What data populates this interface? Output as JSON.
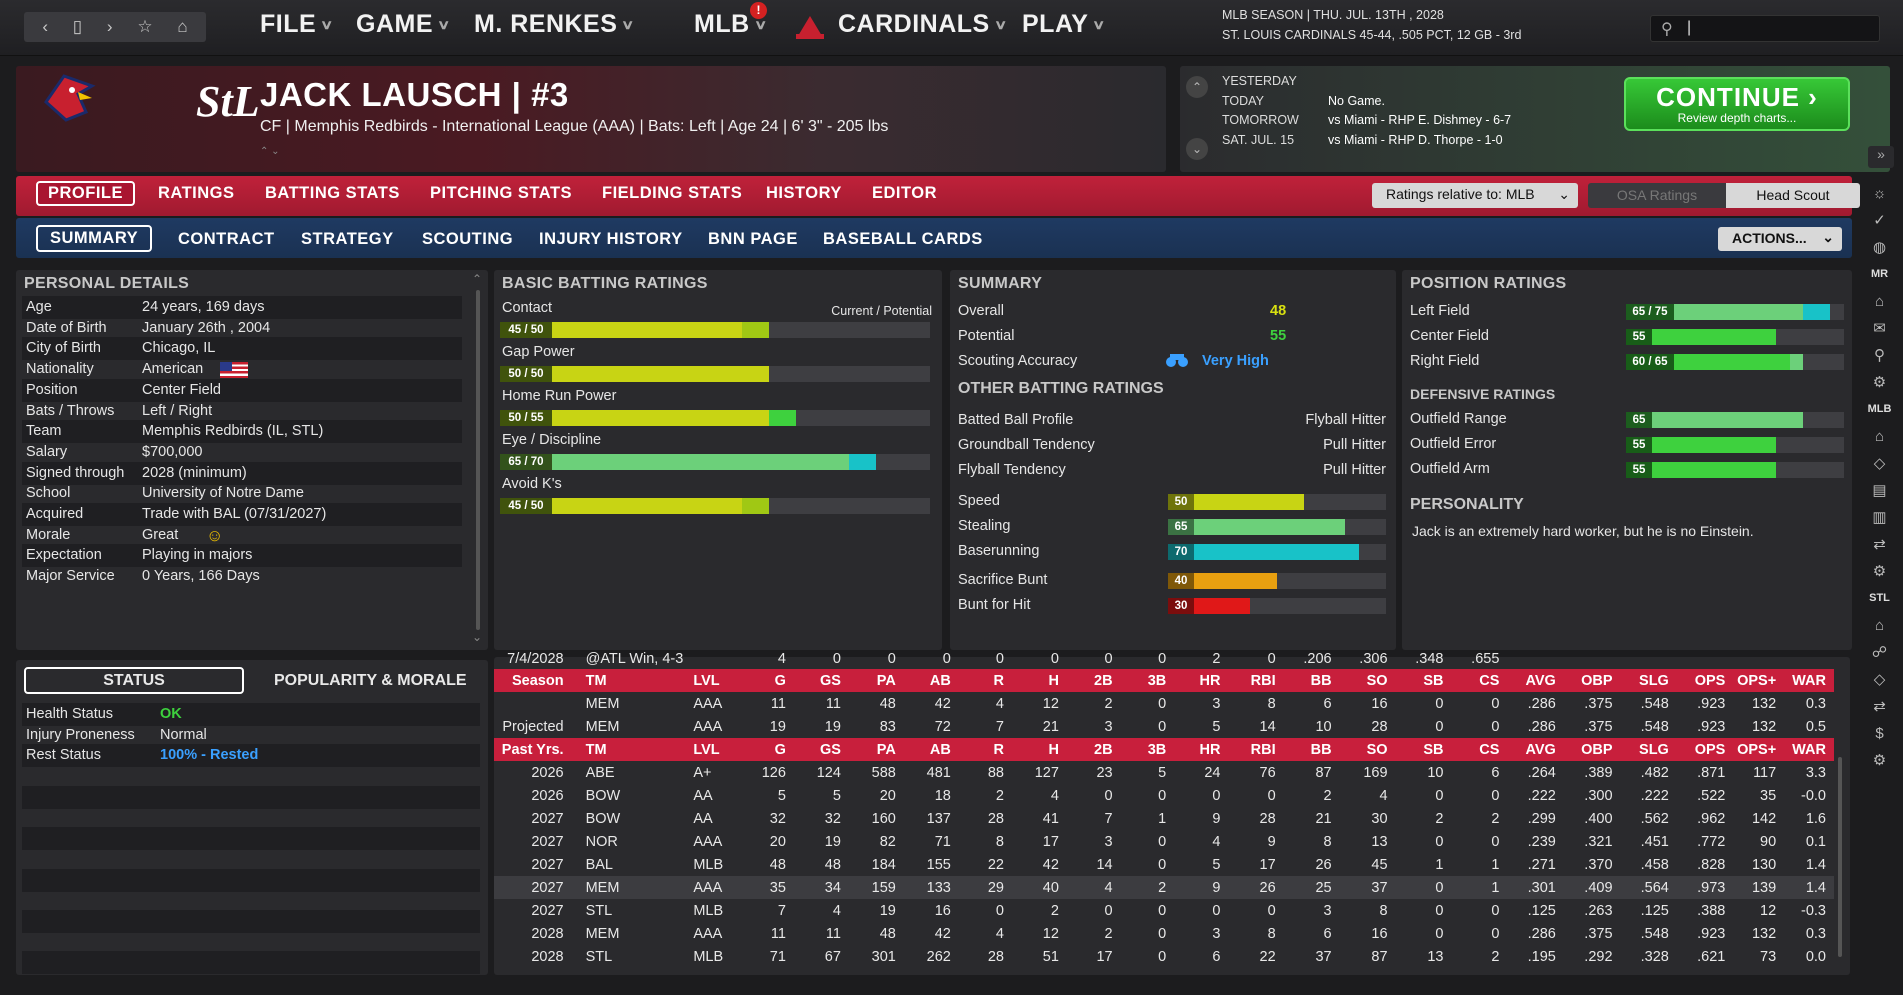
{
  "nav": {
    "back": "‹",
    "fwd": "›",
    "bookmark": "☆",
    "home": "⌂",
    "window": "▯"
  },
  "menu": [
    {
      "label": "FILE"
    },
    {
      "label": "GAME"
    },
    {
      "label": "M. RENKES"
    },
    {
      "label": "MLB"
    },
    {
      "label": "CARDINALS"
    },
    {
      "label": "PLAY"
    }
  ],
  "mlb_badge": "!",
  "season": {
    "line1": "MLB SEASON  |  THU. JUL. 13TH , 2028",
    "line2": "ST. LOUIS CARDINALS  45-44, .505 PCT, 12 GB - 3rd"
  },
  "search": {
    "placeholder": ""
  },
  "player": {
    "name": "JACK LAUSCH  |  #3",
    "info": "CF | Memphis Redbirds - International League (AAA)  |  Bats: Left  |  Age 24  |  6' 3\" - 205 lbs"
  },
  "schedule": {
    "labels": [
      "YESTERDAY",
      "TODAY",
      "TOMORROW",
      "SAT. JUL. 15"
    ],
    "values": [
      "",
      "No Game.",
      "vs Miami - RHP E. Dishmey - 6-7",
      "vs Miami - RHP D. Thorpe - 1-0"
    ]
  },
  "continue": {
    "title": "CONTINUE",
    "subtitle": "Review depth charts..."
  },
  "tabs1": [
    "PROFILE",
    "RATINGS",
    "BATTING STATS",
    "PITCHING STATS",
    "FIELDING STATS",
    "HISTORY",
    "EDITOR"
  ],
  "ratings_relative": "Ratings relative to: MLB",
  "osa": "OSA Ratings",
  "head_scout": "Head Scout",
  "tabs2": [
    "SUMMARY",
    "CONTRACT",
    "STRATEGY",
    "SCOUTING",
    "INJURY HISTORY",
    "BNN PAGE",
    "BASEBALL CARDS"
  ],
  "actions": "ACTIONS...",
  "personal": {
    "title": "PERSONAL DETAILS",
    "rows": [
      {
        "k": "Age",
        "v": "24 years, 169 days"
      },
      {
        "k": "Date of Birth",
        "v": "January 26th , 2004"
      },
      {
        "k": "City of Birth",
        "v": "Chicago, IL"
      },
      {
        "k": "Nationality",
        "v": "American"
      },
      {
        "k": "Position",
        "v": "Center Field"
      },
      {
        "k": "Bats / Throws",
        "v": "Left / Right"
      },
      {
        "k": "Team",
        "v": "Memphis Redbirds (IL, STL)"
      },
      {
        "k": "Salary",
        "v": "$700,000"
      },
      {
        "k": "Signed through",
        "v": "2028 (minimum)"
      },
      {
        "k": "School",
        "v": "University of Notre Dame"
      },
      {
        "k": "Acquired",
        "v": "Trade with BAL (07/31/2027)"
      },
      {
        "k": "Morale",
        "v": "Great"
      },
      {
        "k": "Expectation",
        "v": "Playing in majors"
      },
      {
        "k": "Major Service",
        "v": "0 Years, 166 Days"
      }
    ]
  },
  "status": {
    "tab1": "STATUS",
    "tab2": "POPULARITY & MORALE",
    "rows": [
      {
        "k": "Health Status",
        "v": "OK",
        "color": "#3dd13d"
      },
      {
        "k": "Injury Proneness",
        "v": "Normal",
        "color": "#e6e6e6"
      },
      {
        "k": "Rest Status",
        "v": "100% - Rested",
        "color": "#3aa0ff"
      }
    ]
  },
  "batting": {
    "title": "BASIC BATTING RATINGS",
    "legend": "Current / Potential",
    "items": [
      {
        "name": "Contact",
        "cur": 45,
        "pot": 50,
        "label": "45 / 50",
        "color": "#c8d414",
        "potcolor": "#a0c814"
      },
      {
        "name": "Gap Power",
        "cur": 50,
        "pot": 50,
        "label": "50 / 50",
        "color": "#c8d414",
        "potcolor": "#c8d414"
      },
      {
        "name": "Home Run Power",
        "cur": 50,
        "pot": 55,
        "label": "50 / 55",
        "color": "#c8d414",
        "potcolor": "#3ed13e"
      },
      {
        "name": "Eye / Discipline",
        "cur": 65,
        "pot": 70,
        "label": "65 / 70",
        "color": "#6cd07a",
        "potcolor": "#18c2c8"
      },
      {
        "name": "Avoid K's",
        "cur": 45,
        "pot": 50,
        "label": "45 / 50",
        "color": "#c8d414",
        "potcolor": "#a0c814"
      }
    ]
  },
  "summary": {
    "title": "SUMMARY",
    "overall_k": "Overall",
    "overall": "48",
    "potential_k": "Potential",
    "potential": "55",
    "scout_k": "Scouting Accuracy",
    "scout": "Very High",
    "other_title": "OTHER BATTING RATINGS",
    "other": [
      {
        "k": "Batted Ball Profile",
        "v": "Flyball Hitter"
      },
      {
        "k": "Groundball Tendency",
        "v": "Pull Hitter"
      },
      {
        "k": "Flyball Tendency",
        "v": "Pull Hitter"
      }
    ],
    "speed": [
      {
        "k": "Speed",
        "v": 50,
        "color": "#c8d414"
      },
      {
        "k": "Stealing",
        "v": 65,
        "color": "#6cd07a"
      },
      {
        "k": "Baserunning",
        "v": 70,
        "color": "#18c2c8"
      },
      {
        "k": "Sacrifice Bunt",
        "v": 40,
        "color": "#e8a010"
      },
      {
        "k": "Bunt for Hit",
        "v": 30,
        "color": "#e01818"
      }
    ]
  },
  "position": {
    "title": "POSITION RATINGS",
    "items": [
      {
        "k": "Left Field",
        "label": "65 / 75",
        "cur": 65,
        "pot": 75,
        "color": "#6cd07a",
        "potcolor": "#18c2c8"
      },
      {
        "k": "Center Field",
        "label": "55",
        "cur": 55,
        "pot": 55,
        "color": "#3ed13e",
        "potcolor": "#3ed13e"
      },
      {
        "k": "Right Field",
        "label": "60 / 65",
        "cur": 60,
        "pot": 65,
        "color": "#3ed13e",
        "potcolor": "#6cd07a"
      }
    ],
    "def_title": "DEFENSIVE RATINGS",
    "def": [
      {
        "k": "Outfield Range",
        "v": 65,
        "color": "#6cd07a"
      },
      {
        "k": "Outfield Error",
        "v": 55,
        "color": "#3ed13e"
      },
      {
        "k": "Outfield Arm",
        "v": 55,
        "color": "#3ed13e"
      }
    ],
    "pers_title": "PERSONALITY",
    "pers": "Jack is an extremely hard worker, but he is no Einstein."
  },
  "stats": {
    "partial": [
      "7/4/2028",
      "@ATL  Win, 4-3",
      "",
      "4",
      "0",
      "0",
      "0",
      "0",
      "0",
      "0",
      "0",
      "2",
      "0",
      ".206",
      ".306",
      ".348",
      ".655",
      ""
    ],
    "header1": [
      "Season",
      "TM",
      "LVL",
      "G",
      "GS",
      "PA",
      "AB",
      "R",
      "H",
      "2B",
      "3B",
      "HR",
      "RBI",
      "BB",
      "SO",
      "SB",
      "CS",
      "AVG",
      "OBP",
      "SLG",
      "OPS",
      "OPS+",
      "WAR"
    ],
    "cur": [
      [
        "",
        "MEM",
        "AAA",
        "11",
        "11",
        "48",
        "42",
        "4",
        "12",
        "2",
        "0",
        "3",
        "8",
        "6",
        "16",
        "0",
        "0",
        ".286",
        ".375",
        ".548",
        ".923",
        "132",
        "0.3"
      ],
      [
        "Projected",
        "MEM",
        "AAA",
        "19",
        "19",
        "83",
        "72",
        "7",
        "21",
        "3",
        "0",
        "5",
        "14",
        "10",
        "28",
        "0",
        "0",
        ".286",
        ".375",
        ".548",
        ".923",
        "132",
        "0.5"
      ]
    ],
    "header2": [
      "Past Yrs.",
      "TM",
      "LVL",
      "G",
      "GS",
      "PA",
      "AB",
      "R",
      "H",
      "2B",
      "3B",
      "HR",
      "RBI",
      "BB",
      "SO",
      "SB",
      "CS",
      "AVG",
      "OBP",
      "SLG",
      "OPS",
      "OPS+",
      "WAR"
    ],
    "past": [
      [
        "2026",
        "ABE",
        "A+",
        "126",
        "124",
        "588",
        "481",
        "88",
        "127",
        "23",
        "5",
        "24",
        "76",
        "87",
        "169",
        "10",
        "6",
        ".264",
        ".389",
        ".482",
        ".871",
        "117",
        "3.3"
      ],
      [
        "2026",
        "BOW",
        "AA",
        "5",
        "5",
        "20",
        "18",
        "2",
        "4",
        "0",
        "0",
        "0",
        "0",
        "2",
        "4",
        "0",
        "0",
        ".222",
        ".300",
        ".222",
        ".522",
        "35",
        "-0.0"
      ],
      [
        "2027",
        "BOW",
        "AA",
        "32",
        "32",
        "160",
        "137",
        "28",
        "41",
        "7",
        "1",
        "9",
        "28",
        "21",
        "30",
        "2",
        "2",
        ".299",
        ".400",
        ".562",
        ".962",
        "142",
        "1.6"
      ],
      [
        "2027",
        "NOR",
        "AAA",
        "20",
        "19",
        "82",
        "71",
        "8",
        "17",
        "3",
        "0",
        "4",
        "9",
        "8",
        "13",
        "0",
        "0",
        ".239",
        ".321",
        ".451",
        ".772",
        "90",
        "0.1"
      ],
      [
        "2027",
        "BAL",
        "MLB",
        "48",
        "48",
        "184",
        "155",
        "22",
        "42",
        "14",
        "0",
        "5",
        "17",
        "26",
        "45",
        "1",
        "1",
        ".271",
        ".370",
        ".458",
        ".828",
        "130",
        "1.4"
      ],
      [
        "2027",
        "MEM",
        "AAA",
        "35",
        "34",
        "159",
        "133",
        "29",
        "40",
        "4",
        "2",
        "9",
        "26",
        "25",
        "37",
        "0",
        "1",
        ".301",
        ".409",
        ".564",
        ".973",
        "139",
        "1.4"
      ],
      [
        "2027",
        "STL",
        "MLB",
        "7",
        "4",
        "19",
        "16",
        "0",
        "2",
        "0",
        "0",
        "0",
        "0",
        "3",
        "8",
        "0",
        "0",
        ".125",
        ".263",
        ".125",
        ".388",
        "12",
        "-0.3"
      ],
      [
        "2028",
        "MEM",
        "AAA",
        "11",
        "11",
        "48",
        "42",
        "4",
        "12",
        "2",
        "0",
        "3",
        "8",
        "6",
        "16",
        "0",
        "0",
        ".286",
        ".375",
        ".548",
        ".923",
        "132",
        "0.3"
      ],
      [
        "2028",
        "STL",
        "MLB",
        "71",
        "67",
        "301",
        "262",
        "28",
        "51",
        "17",
        "0",
        "6",
        "22",
        "37",
        "87",
        "13",
        "2",
        ".195",
        ".292",
        ".328",
        ".621",
        "73",
        "0.0"
      ]
    ],
    "highlight_index": 5
  },
  "sidebar": {
    "mr": "MR",
    "mlb": "MLB",
    "stl": "STL"
  }
}
